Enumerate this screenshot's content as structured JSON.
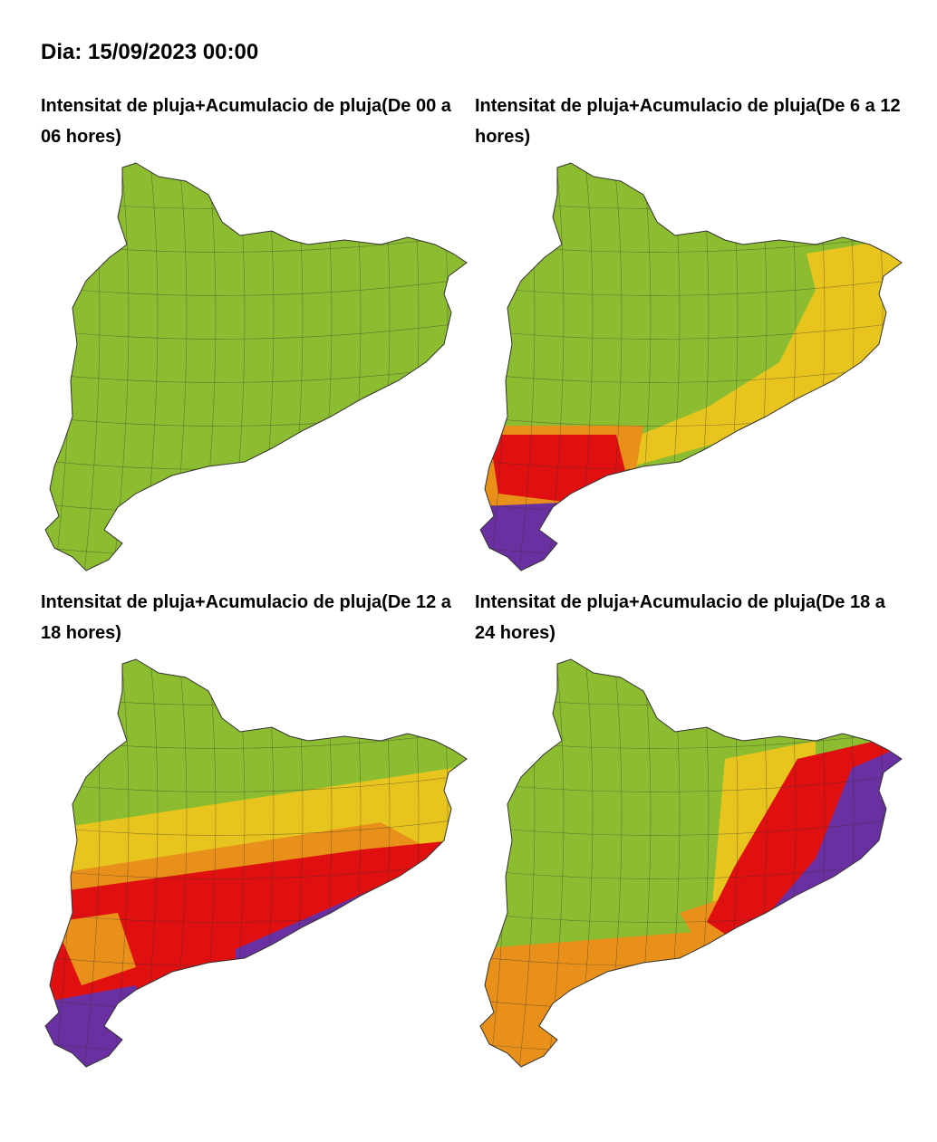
{
  "header": {
    "title": "Dia: 15/09/2023 00:00"
  },
  "panels": [
    {
      "title": "Intensitat de pluja+Acumulacio de pluja(De 00 a 06 hores)"
    },
    {
      "title": "Intensitat de pluja+Acumulacio de pluja(De 6 a 12 hores)"
    },
    {
      "title": "Intensitat de pluja+Acumulacio de pluja(De 12 a 18 hores)"
    },
    {
      "title": "Intensitat de pluja+Acumulacio de pluja(De 18 a 24 hores)"
    }
  ]
}
